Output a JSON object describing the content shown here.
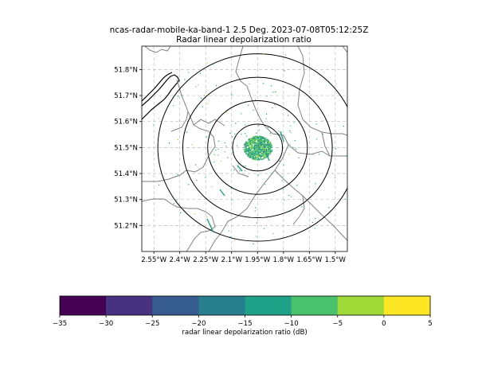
{
  "title": {
    "line1": "ncas-radar-mobile-ka-band-1 2.5 Deg. 2023-07-08T05:12:25Z",
    "line2": "Radar linear depolarization ratio"
  },
  "map": {
    "lon_range": [
      -2.62,
      -1.43
    ],
    "lat_range": [
      51.1,
      51.89
    ],
    "lon_ticks": [
      {
        "value": -2.55,
        "label": "2.55°W"
      },
      {
        "value": -2.4,
        "label": "2.4°W"
      },
      {
        "value": -2.25,
        "label": "2.25°W"
      },
      {
        "value": -2.1,
        "label": "2.1°W"
      },
      {
        "value": -1.95,
        "label": "1.95°W"
      },
      {
        "value": -1.8,
        "label": "1.8°W"
      },
      {
        "value": -1.65,
        "label": "1.65°W"
      },
      {
        "value": -1.5,
        "label": "1.5°W"
      }
    ],
    "lat_ticks": [
      {
        "value": 51.2,
        "label": "51.2°N"
      },
      {
        "value": 51.3,
        "label": "51.3°N"
      },
      {
        "value": 51.4,
        "label": "51.4°N"
      },
      {
        "value": 51.5,
        "label": "51.5°N"
      },
      {
        "value": 51.6,
        "label": "51.6°N"
      },
      {
        "value": 51.7,
        "label": "51.7°N"
      },
      {
        "value": 51.8,
        "label": "51.8°N"
      }
    ],
    "grid": true,
    "radar_site": {
      "lon": -1.95,
      "lat": 51.5
    },
    "range_rings_km": [
      10,
      20,
      30,
      40
    ]
  },
  "colorbar": {
    "label": "radar linear depolarization ratio (dB)",
    "ticks": [
      "−35",
      "−30",
      "−25",
      "−20",
      "−15",
      "−10",
      "−5",
      "0",
      "5"
    ],
    "range": [
      -35,
      5
    ],
    "colors": [
      "#440154",
      "#46327e",
      "#365c8d",
      "#277f8e",
      "#1fa187",
      "#4ac16d",
      "#a0da39",
      "#fde725"
    ]
  }
}
